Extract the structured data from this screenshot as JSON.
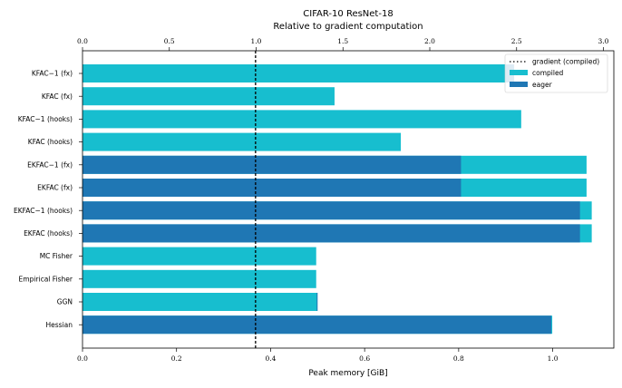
{
  "chart_data": {
    "type": "bar",
    "orientation": "horizontal",
    "stacking": "overlay",
    "title": "CIFAR-10 ResNet-18",
    "subtitle": "Relative to gradient computation",
    "xlabel": "Peak memory [GiB]",
    "xlim": [
      0,
      1.13
    ],
    "xticks": [
      "0.0",
      "0.2",
      "0.4",
      "0.6",
      "0.8",
      "1.0"
    ],
    "top_axis": {
      "xlim": [
        0,
        3.06
      ],
      "ticks": [
        "0.0",
        "0.5",
        "1.0",
        "1.5",
        "2.0",
        "2.5",
        "3.0"
      ]
    },
    "categories": [
      "KFAC$^{-1}$ (fx)",
      "KFAC (fx)",
      "KFAC$^{-1}$ (hooks)",
      "KFAC (hooks)",
      "EKFAC$^{-1}$ (fx)",
      "EKFAC (fx)",
      "EKFAC$^{-1}$ (hooks)",
      "EKFAC (hooks)",
      "MC Fisher",
      "Empirical Fisher",
      "GGN",
      "Hessian"
    ],
    "category_labels": [
      "KFAC−1 (fx)",
      "KFAC (fx)",
      "KFAC−1 (hooks)",
      "KFAC (hooks)",
      "EKFAC−1 (fx)",
      "EKFAC (fx)",
      "EKFAC−1 (hooks)",
      "EKFAC (hooks)",
      "MC Fisher",
      "Empirical Fisher",
      "GGN",
      "Hessian"
    ],
    "series": [
      {
        "name": "compiled",
        "color": "#17becf",
        "values": [
          0.9,
          0.536,
          0.933,
          0.677,
          1.072,
          1.072,
          1.083,
          1.083,
          0.497,
          0.497,
          0.498,
          0.999
        ]
      },
      {
        "name": "eager",
        "color": "#1f77b4",
        "values": [
          0.918,
          0.0,
          0.0,
          0.0,
          0.805,
          0.805,
          1.058,
          1.058,
          0.0,
          0.0,
          0.5,
          0.997
        ]
      }
    ],
    "reference_line": {
      "name": "gradient (compiled)",
      "value": 0.368,
      "style": "dotted",
      "color": "#000000"
    },
    "legend": {
      "position": "top-right",
      "entries": [
        "gradient (compiled)",
        "compiled",
        "eager"
      ]
    },
    "grid": false
  }
}
